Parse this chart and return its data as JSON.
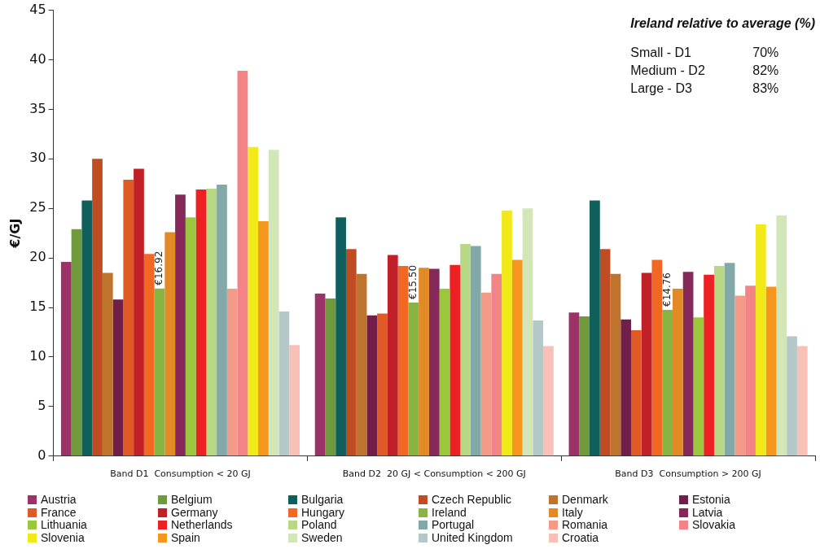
{
  "chart_data": {
    "type": "bar",
    "ylabel": "€/GJ",
    "categories": [
      "Band D1  Consumption < 20 GJ",
      "Band D2  20 GJ < Consumption < 200 GJ",
      "Band D3  Consumption > 200 GJ"
    ],
    "ylim": [
      0,
      45
    ],
    "yticks": [
      0,
      5,
      10,
      15,
      20,
      25,
      30,
      35,
      40,
      45
    ],
    "grid": false,
    "legend": "bottom",
    "annotations": [
      "Ireland relative to average (%)",
      "Small - D1",
      "70%",
      "Medium - D2",
      "82%",
      "Large - D3",
      "83%"
    ],
    "series": [
      {
        "name": "Austria",
        "color": "#9b3268",
        "values": [
          19.6,
          16.4,
          14.5
        ]
      },
      {
        "name": "Belgium",
        "color": "#709a3e",
        "values": [
          22.9,
          15.9,
          14.1
        ]
      },
      {
        "name": "Bulgaria",
        "color": "#0f5f5d",
        "values": [
          25.8,
          24.1,
          25.8
        ]
      },
      {
        "name": "Czech Republic",
        "color": "#c04c24",
        "values": [
          30.0,
          20.9,
          20.9
        ]
      },
      {
        "name": "Denmark",
        "color": "#be742c",
        "values": [
          18.5,
          18.4,
          18.4
        ]
      },
      {
        "name": "Estonia",
        "color": "#711f4a",
        "values": [
          15.8,
          14.2,
          13.8
        ]
      },
      {
        "name": "France",
        "color": "#e05a26",
        "values": [
          27.9,
          14.4,
          12.7
        ]
      },
      {
        "name": "Germany",
        "color": "#c02026",
        "values": [
          29.0,
          20.3,
          18.5
        ]
      },
      {
        "name": "Hungary",
        "color": "#f26722",
        "values": [
          20.4,
          19.2,
          19.8
        ]
      },
      {
        "name": "Ireland",
        "color": "#88b443",
        "values": [
          16.92,
          15.5,
          14.76
        ],
        "value_labels": [
          "€16.92",
          "€15.50",
          "€14.76"
        ]
      },
      {
        "name": "Italy",
        "color": "#e18a26",
        "values": [
          22.6,
          19.0,
          16.9
        ]
      },
      {
        "name": "Latvia",
        "color": "#86285a",
        "values": [
          26.4,
          18.9,
          18.6
        ]
      },
      {
        "name": "Lithuania",
        "color": "#9ac73c",
        "values": [
          24.1,
          16.9,
          14.0
        ]
      },
      {
        "name": "Netherlands",
        "color": "#ed2024",
        "values": [
          26.9,
          19.3,
          18.3
        ]
      },
      {
        "name": "Poland",
        "color": "#b8d886",
        "values": [
          27.0,
          21.4,
          19.2
        ]
      },
      {
        "name": "Portugal",
        "color": "#82a9a8",
        "values": [
          27.4,
          21.2,
          19.5
        ]
      },
      {
        "name": "Romania",
        "color": "#f49b88",
        "values": [
          16.9,
          16.5,
          16.2
        ]
      },
      {
        "name": "Slovakia",
        "color": "#f28386",
        "values": [
          38.9,
          18.4,
          17.2
        ]
      },
      {
        "name": "Slovenia",
        "color": "#f2e918",
        "values": [
          31.2,
          24.8,
          23.4
        ]
      },
      {
        "name": "Spain",
        "color": "#f7961d",
        "values": [
          23.7,
          19.8,
          17.1
        ]
      },
      {
        "name": "Sweden",
        "color": "#d3e6b8",
        "values": [
          30.9,
          25.0,
          24.3
        ]
      },
      {
        "name": "United Kingdom",
        "color": "#b5c8c8",
        "values": [
          14.6,
          13.7,
          12.1
        ]
      },
      {
        "name": "Croatia",
        "color": "#f8c0b6",
        "values": [
          11.2,
          11.1,
          11.1
        ]
      }
    ]
  }
}
